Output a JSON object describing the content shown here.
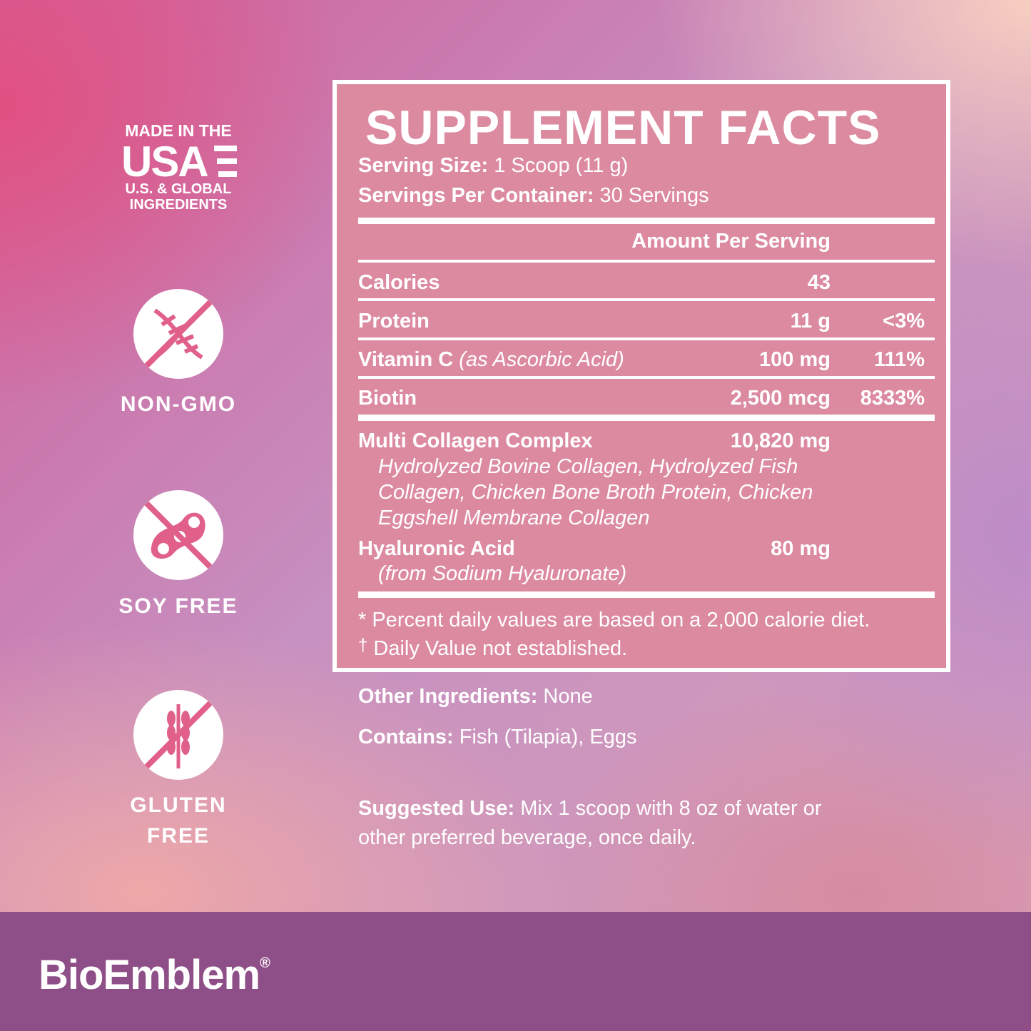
{
  "badges": {
    "usa": {
      "line1": "MADE IN THE",
      "line2": "USA",
      "line3": "U.S. & GLOBAL",
      "line4": "INGREDIENTS"
    },
    "non_gmo": {
      "label": "NON-GMO",
      "icon": "dna-crossed-icon"
    },
    "soy_free": {
      "label": "SOY FREE",
      "icon": "soybean-crossed-icon"
    },
    "gluten_free": {
      "label_1": "GLUTEN",
      "label_2": "FREE",
      "icon": "wheat-crossed-icon"
    }
  },
  "facts": {
    "title": "SUPPLEMENT FACTS",
    "serving_size_label": "Serving Size:",
    "serving_size": "1 Scoop (11 g)",
    "servings_label": "Servings Per Container:",
    "servings": "30 Servings",
    "amount_header": "Amount Per Serving",
    "rows": [
      {
        "name": "Calories",
        "amount": "43",
        "dv": ""
      },
      {
        "name": "Protein",
        "amount": "11 g",
        "dv": "<3%"
      },
      {
        "name": "Vitamin C",
        "sub": "(as Ascorbic Acid)",
        "amount": "100 mg",
        "dv": "111%"
      },
      {
        "name": "Biotin",
        "amount": "2,500 mcg",
        "dv": "8333%"
      }
    ],
    "collagen": {
      "name": "Multi Collagen Complex",
      "amount": "10,820 mg",
      "desc": [
        "Hydrolyzed Bovine Collagen, Hydrolyzed Fish",
        "Collagen, Chicken Bone Broth Protein, Chicken",
        "Eggshell Membrane Collagen"
      ]
    },
    "hyaluronic": {
      "name": "Hyaluronic Acid",
      "amount": "80 mg",
      "desc": "(from Sodium Hyaluronate)"
    },
    "footnote_1": "* Percent daily values are based on a 2,000 calorie diet.",
    "footnote_2_mark": "†",
    "footnote_2": "Daily Value not established."
  },
  "other": {
    "other_label": "Other Ingredients:",
    "other_value": "None",
    "contains_label": "Contains:",
    "contains_value": "Fish (Tilapia), Eggs",
    "use_label": "Suggested Use:",
    "use_line1": "Mix 1 scoop with 8 oz of water or",
    "use_line2": "other preferred beverage, once daily."
  },
  "brand": {
    "name": "BioEmblem",
    "mark": "®"
  },
  "colors": {
    "panel": "#dc8aa0",
    "footer": "#8e4e87",
    "icon_pink": "#e0608a"
  }
}
